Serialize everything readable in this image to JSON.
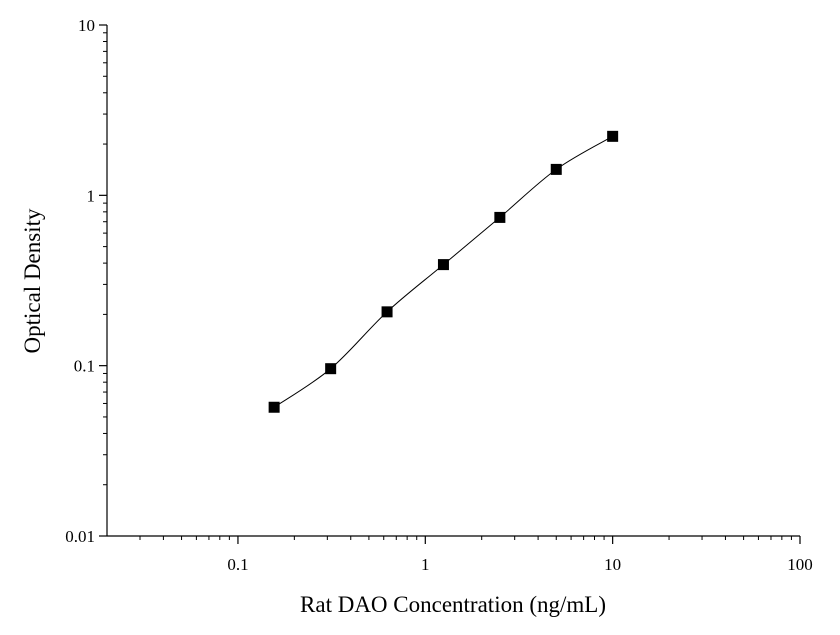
{
  "chart_data": {
    "type": "scatter",
    "title": "",
    "xlabel": "Rat DAO Concentration (ng/mL)",
    "ylabel": "Optical Density",
    "x_scale": "log",
    "y_scale": "log",
    "xlim": [
      0.02,
      100
    ],
    "ylim": [
      0.01,
      10
    ],
    "x_ticks": [
      0.1,
      1,
      10,
      100
    ],
    "y_ticks": [
      0.01,
      0.1,
      1,
      10
    ],
    "x_tick_labels": [
      "0.1",
      "1",
      "10",
      "100"
    ],
    "y_tick_labels": [
      "0.01",
      "0.1",
      "1",
      "10"
    ],
    "grid": false,
    "legend": "none",
    "series": [
      {
        "marker": "square",
        "color": "#000000",
        "line": "smooth",
        "x": [
          0.156,
          0.3125,
          0.625,
          1.25,
          2.5,
          5,
          10
        ],
        "y": [
          0.057,
          0.096,
          0.207,
          0.392,
          0.742,
          1.42,
          2.22
        ]
      }
    ]
  }
}
